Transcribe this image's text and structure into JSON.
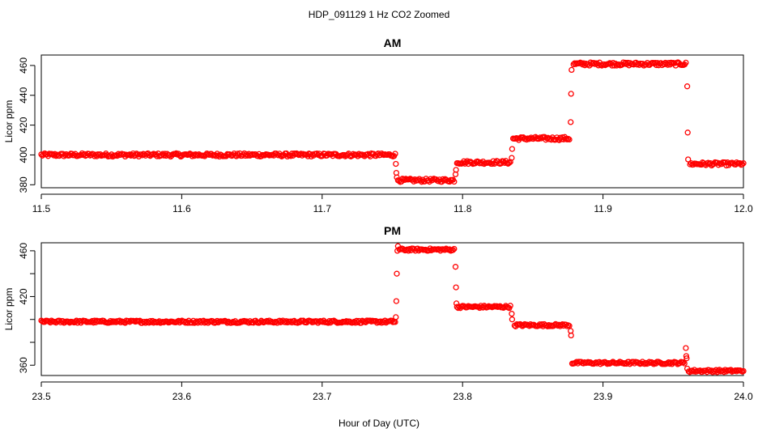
{
  "figure": {
    "suptitle": "HDP_091129  1 Hz CO2 Zoomed",
    "xlabel": "Hour of Day (UTC)"
  },
  "colors": {
    "points": "#ff0000",
    "axis": "#000000"
  },
  "chart_data": [
    {
      "type": "scatter",
      "title": "AM",
      "ylabel": "Licor ppm",
      "xlim": [
        11.5,
        12.0
      ],
      "ylim": [
        378,
        467
      ],
      "xticks": [
        11.5,
        11.6,
        11.7,
        11.8,
        11.9,
        12.0
      ],
      "xtick_labels": [
        "11.5",
        "11.6",
        "11.7",
        "11.8",
        "11.9",
        "12.0"
      ],
      "yticks": [
        380,
        400,
        420,
        440,
        460
      ],
      "ytick_labels": [
        "380",
        "400",
        "420",
        "440",
        "460"
      ],
      "marker": "open-circle",
      "series": [
        {
          "segments": [
            {
              "x": [
                11.5,
                11.752
              ],
              "y": 400
            },
            {
              "x": [
                11.754,
                11.794
              ],
              "y": 383
            },
            {
              "x": [
                11.796,
                11.834
              ],
              "y": 395
            },
            {
              "x": [
                11.836,
                11.876
              ],
              "y": 411
            },
            {
              "x": [
                11.879,
                11.959
              ],
              "y": 461
            },
            {
              "x": [
                11.962,
                12.0
              ],
              "y": 394
            }
          ],
          "transition_points": [
            {
              "x": 11.7525,
              "y": 394
            },
            {
              "x": 11.7528,
              "y": 388
            },
            {
              "x": 11.7532,
              "y": 385
            },
            {
              "x": 11.795,
              "y": 387
            },
            {
              "x": 11.7953,
              "y": 390
            },
            {
              "x": 11.835,
              "y": 398
            },
            {
              "x": 11.8353,
              "y": 404
            },
            {
              "x": 11.877,
              "y": 422
            },
            {
              "x": 11.8773,
              "y": 441
            },
            {
              "x": 11.8776,
              "y": 457
            },
            {
              "x": 11.96,
              "y": 446
            },
            {
              "x": 11.9603,
              "y": 415
            },
            {
              "x": 11.9606,
              "y": 397
            }
          ]
        }
      ]
    },
    {
      "type": "scatter",
      "title": "PM",
      "ylabel": "Licor ppm",
      "xlim": [
        23.5,
        24.0
      ],
      "ylim": [
        351,
        467
      ],
      "xticks": [
        23.5,
        23.6,
        23.7,
        23.8,
        23.9,
        24.0
      ],
      "xtick_labels": [
        "23.5",
        "23.6",
        "23.7",
        "23.8",
        "23.9",
        "24.0"
      ],
      "yticks": [
        360,
        380,
        400,
        420,
        440,
        460
      ],
      "ytick_labels": [
        "360",
        "",
        "",
        "420",
        "",
        "460"
      ],
      "marker": "open-circle",
      "series": [
        {
          "segments": [
            {
              "x": [
                23.5,
                23.752
              ],
              "y": 398
            },
            {
              "x": [
                23.755,
                23.794
              ],
              "y": 461
            },
            {
              "x": [
                23.796,
                23.834
              ],
              "y": 411
            },
            {
              "x": [
                23.837,
                23.876
              ],
              "y": 395
            },
            {
              "x": [
                23.878,
                23.958
              ],
              "y": 362
            },
            {
              "x": [
                23.961,
                24.0
              ],
              "y": 355
            }
          ],
          "transition_points": [
            {
              "x": 23.7525,
              "y": 402
            },
            {
              "x": 23.7528,
              "y": 416
            },
            {
              "x": 23.7532,
              "y": 440
            },
            {
              "x": 23.7536,
              "y": 460
            },
            {
              "x": 23.754,
              "y": 464
            },
            {
              "x": 23.795,
              "y": 446
            },
            {
              "x": 23.7953,
              "y": 428
            },
            {
              "x": 23.7956,
              "y": 414
            },
            {
              "x": 23.835,
              "y": 405
            },
            {
              "x": 23.8353,
              "y": 400
            },
            {
              "x": 23.877,
              "y": 390
            },
            {
              "x": 23.8773,
              "y": 386
            },
            {
              "x": 23.959,
              "y": 375
            },
            {
              "x": 23.9593,
              "y": 368
            },
            {
              "x": 23.9596,
              "y": 366
            },
            {
              "x": 23.96,
              "y": 357
            }
          ]
        }
      ]
    }
  ]
}
